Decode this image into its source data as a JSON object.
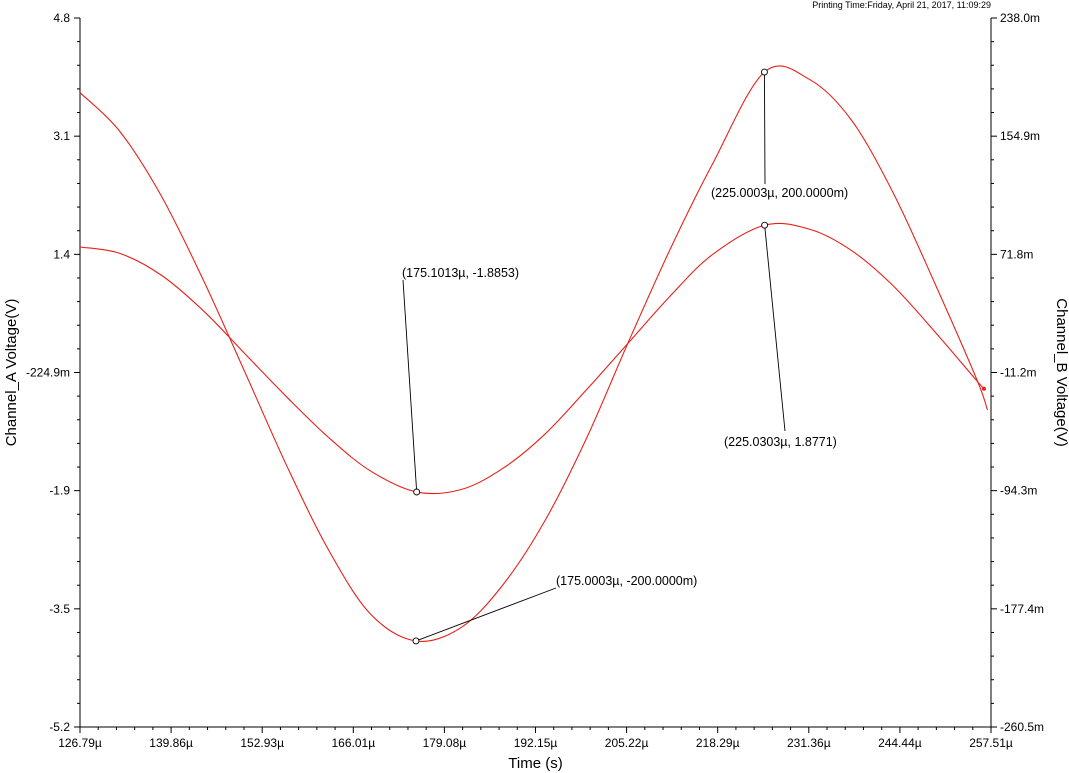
{
  "printing_time": "Printing Time:Friday, April 21, 2017, 11:09:29",
  "colors": {
    "trace": "#e8201a",
    "axis": "#000000",
    "background": "#ffffff"
  },
  "chart_data": {
    "type": "line",
    "title": "",
    "xlabel": "Time (s)",
    "ylabel_left": "Channel_A Voltage(V)",
    "ylabel_right": "Channel_B Voltage(V)",
    "xlim": [
      126.79,
      257.51
    ],
    "x_unit": "µs",
    "ylim_left": [
      -5.2,
      4.8
    ],
    "ylim_right": [
      -0.2605,
      0.238
    ],
    "x_ticks": [
      "126.79µ",
      "139.86µ",
      "152.93µ",
      "166.01µ",
      "179.08µ",
      "192.15µ",
      "205.22µ",
      "218.29µ",
      "231.36µ",
      "244.44µ",
      "257.51µ"
    ],
    "y_ticks_left": [
      "4.8",
      "3.1",
      "1.4",
      "-224.9m",
      "-1.9",
      "-3.5",
      "-5.2"
    ],
    "y_ticks_right": [
      "238.0m",
      "154.9m",
      "71.8m",
      "-11.2m",
      "-94.3m",
      "-177.4m",
      "-260.5m"
    ],
    "grid": false,
    "series": [
      {
        "axis": "left",
        "x": [
          126.79,
          132.5,
          138.5,
          144.5,
          150.5,
          156.5,
          162.5,
          168.5,
          175.1,
          181.5,
          187.5,
          193.5,
          199.5,
          205.5,
          211.5,
          217.5,
          225.03,
          231.5,
          237.5,
          243.5,
          249.5,
          255.5,
          256.5
        ],
        "y": [
          1.57,
          1.48,
          1.17,
          0.67,
          0.06,
          -0.55,
          -1.12,
          -1.59,
          -1.8853,
          -1.85,
          -1.55,
          -1.07,
          -0.44,
          0.22,
          0.88,
          1.46,
          1.8771,
          1.82,
          1.52,
          1.02,
          0.37,
          -0.32,
          -0.43
        ]
      },
      {
        "axis": "right",
        "x": [
          126.79,
          132.5,
          138.5,
          144.5,
          150.5,
          156.5,
          162.5,
          168.5,
          175.0,
          181.5,
          187.5,
          193.5,
          199.5,
          205.5,
          211.5,
          217.5,
          225.0,
          231.5,
          237.5,
          243.5,
          249.5,
          255.5,
          257.0
        ],
        "y": [
          0.1855,
          0.1583,
          0.1125,
          0.0536,
          -0.0115,
          -0.0773,
          -0.1364,
          -0.1812,
          -0.2,
          -0.1905,
          -0.1604,
          -0.1155,
          -0.0572,
          0.0104,
          0.0757,
          0.1349,
          0.2,
          0.1947,
          0.1661,
          0.1148,
          0.0509,
          -0.0165,
          -0.0376
        ]
      }
    ],
    "annotations": [
      {
        "label": "(175.1013µ, -1.8853)",
        "axis": "left",
        "x": 175.1013,
        "y": -1.8853
      },
      {
        "label": "(225.0303µ, 1.8771)",
        "axis": "left",
        "x": 225.0303,
        "y": 1.8771
      },
      {
        "label": "(175.0003µ, -200.0000m)",
        "axis": "right",
        "x": 175.0003,
        "y": -0.2
      },
      {
        "label": "(225.0003µ, 200.0000m)",
        "axis": "right",
        "x": 225.0003,
        "y": 0.2
      }
    ]
  }
}
